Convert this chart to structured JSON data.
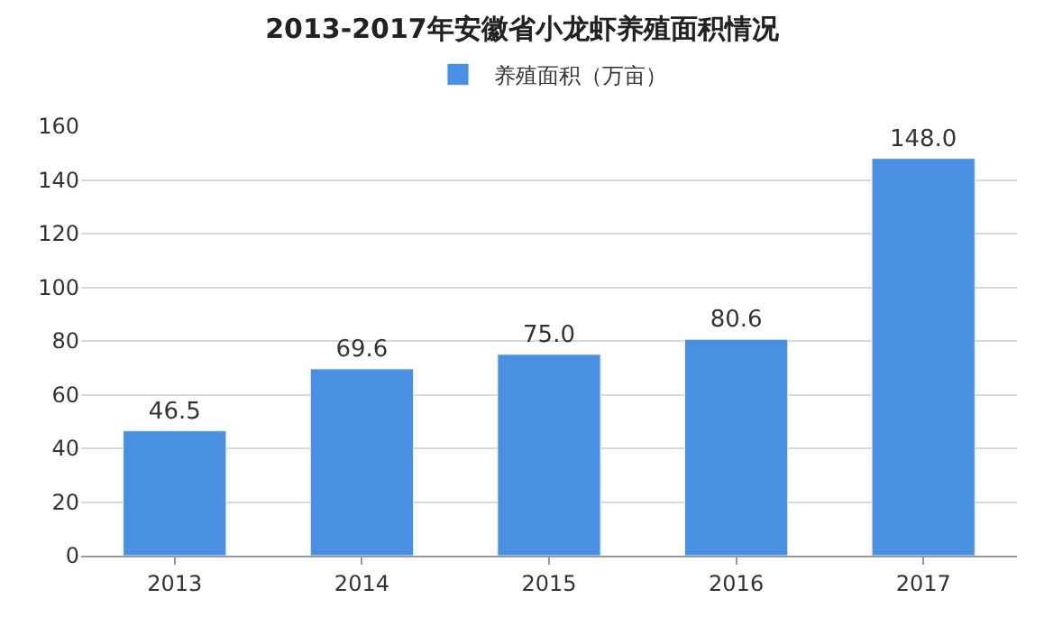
{
  "chart_data": {
    "type": "bar",
    "title": "2013-2017年安徽省小龙虾养殖面积情况",
    "categories": [
      "2013",
      "2014",
      "2015",
      "2016",
      "2017"
    ],
    "series": [
      {
        "name": "养殖面积（万亩）",
        "color": "#4a90e2",
        "values": [
          46.5,
          69.6,
          75.0,
          80.6,
          148.0
        ],
        "value_labels": [
          "46.5",
          "69.6",
          "75.0",
          "80.6",
          "148.0"
        ]
      }
    ],
    "ylim": [
      0,
      160
    ],
    "yticks": [
      0,
      20,
      40,
      60,
      80,
      100,
      120,
      140,
      160
    ],
    "grid": "y",
    "legend": "top"
  }
}
